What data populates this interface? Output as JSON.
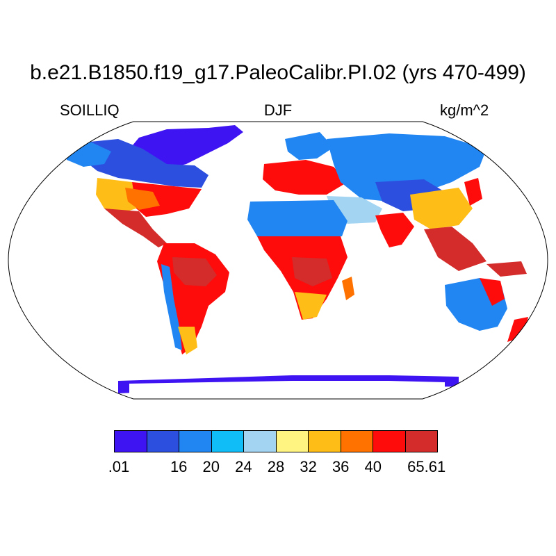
{
  "title": "b.e21.B1850.f19_g17.PaleoCalibr.PI.02 (yrs 470-499)",
  "subtitle_left": "SOILLIQ",
  "subtitle_center": "DJF",
  "subtitle_right": "kg/m^2",
  "colorbar": {
    "colors": [
      "#3f14f3",
      "#2c4fe0",
      "#2186f2",
      "#11bdf6",
      "#a3d5f2",
      "#fff481",
      "#ffbd17",
      "#ff7200",
      "#fe0b0b",
      "#d42b2b"
    ],
    "labels": [
      ".01",
      "16",
      "20",
      "24",
      "28",
      "32",
      "36",
      "40",
      "65.61"
    ]
  },
  "ocean_color": "#ffffff",
  "projection": "Robinson"
}
